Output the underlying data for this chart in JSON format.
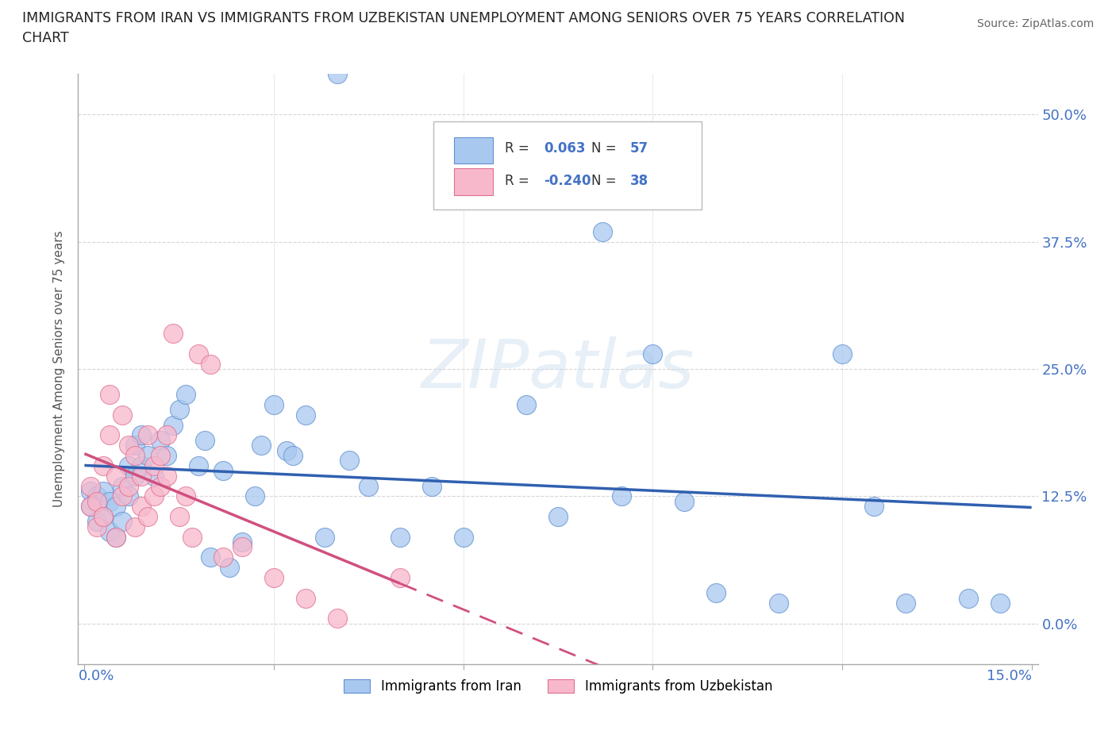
{
  "title_line1": "IMMIGRANTS FROM IRAN VS IMMIGRANTS FROM UZBEKISTAN UNEMPLOYMENT AMONG SENIORS OVER 75 YEARS CORRELATION",
  "title_line2": "CHART",
  "source": "Source: ZipAtlas.com",
  "ylabel_ticks": [
    0.0,
    12.5,
    25.0,
    37.5,
    50.0
  ],
  "xlim": [
    -0.001,
    0.151
  ],
  "ylim": [
    -0.04,
    0.54
  ],
  "iran_R": 0.063,
  "iran_N": 57,
  "uzbek_R": -0.24,
  "uzbek_N": 38,
  "iran_color": "#a8c8f0",
  "iran_edge": "#6090d0",
  "uzbek_color": "#f8b8cc",
  "uzbek_edge": "#e07090",
  "background_color": "#ffffff",
  "grid_color": "#cccccc",
  "trend_iran_color": "#3060b0",
  "trend_uzbek_color": "#d05080",
  "iran_x": [
    0.001,
    0.001,
    0.002,
    0.002,
    0.003,
    0.003,
    0.004,
    0.004,
    0.005,
    0.005,
    0.006,
    0.006,
    0.007,
    0.007,
    0.008,
    0.008,
    0.009,
    0.009,
    0.01,
    0.011,
    0.012,
    0.013,
    0.014,
    0.015,
    0.016,
    0.018,
    0.019,
    0.02,
    0.022,
    0.023,
    0.025,
    0.027,
    0.028,
    0.03,
    0.032,
    0.033,
    0.035,
    0.038,
    0.04,
    0.042,
    0.045,
    0.05,
    0.055,
    0.06,
    0.07,
    0.075,
    0.082,
    0.085,
    0.09,
    0.095,
    0.1,
    0.11,
    0.12,
    0.125,
    0.13,
    0.14,
    0.145
  ],
  "iran_y": [
    0.13,
    0.115,
    0.125,
    0.1,
    0.105,
    0.13,
    0.09,
    0.12,
    0.085,
    0.115,
    0.1,
    0.135,
    0.125,
    0.155,
    0.145,
    0.175,
    0.155,
    0.185,
    0.165,
    0.145,
    0.18,
    0.165,
    0.195,
    0.21,
    0.225,
    0.155,
    0.18,
    0.065,
    0.15,
    0.055,
    0.08,
    0.125,
    0.175,
    0.215,
    0.17,
    0.165,
    0.205,
    0.085,
    0.54,
    0.16,
    0.135,
    0.085,
    0.135,
    0.085,
    0.215,
    0.105,
    0.385,
    0.125,
    0.265,
    0.12,
    0.03,
    0.02,
    0.265,
    0.115,
    0.02,
    0.025,
    0.02
  ],
  "uzbek_x": [
    0.001,
    0.001,
    0.002,
    0.002,
    0.003,
    0.003,
    0.004,
    0.004,
    0.005,
    0.005,
    0.006,
    0.006,
    0.007,
    0.007,
    0.008,
    0.008,
    0.009,
    0.009,
    0.01,
    0.01,
    0.011,
    0.011,
    0.012,
    0.012,
    0.013,
    0.013,
    0.014,
    0.015,
    0.016,
    0.017,
    0.018,
    0.02,
    0.022,
    0.025,
    0.03,
    0.035,
    0.04,
    0.05
  ],
  "uzbek_y": [
    0.135,
    0.115,
    0.12,
    0.095,
    0.155,
    0.105,
    0.185,
    0.225,
    0.145,
    0.085,
    0.205,
    0.125,
    0.175,
    0.135,
    0.095,
    0.165,
    0.145,
    0.115,
    0.185,
    0.105,
    0.155,
    0.125,
    0.135,
    0.165,
    0.145,
    0.185,
    0.285,
    0.105,
    0.125,
    0.085,
    0.265,
    0.255,
    0.065,
    0.075,
    0.045,
    0.025,
    0.005,
    0.045
  ],
  "watermark": "ZIPatlas",
  "ylabel": "Unemployment Among Seniors over 75 years"
}
